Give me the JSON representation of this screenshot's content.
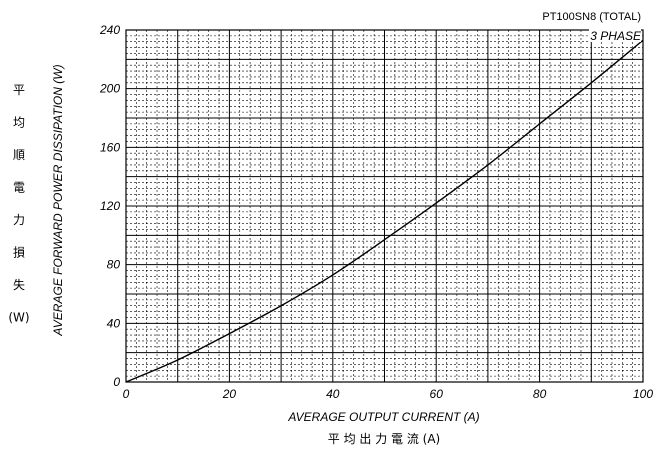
{
  "chart_data": {
    "type": "line",
    "title": "PT100SN8 (TOTAL)",
    "annotation": "3 PHASE",
    "xlabel": "AVERAGE OUTPUT CURRENT (A)",
    "xlabel_jp": "平 均 出 力 電 流  (A)",
    "ylabel": "AVERAGE FORWARD POWER DISSIPATION (W)",
    "ylabel_jp": [
      "平",
      "均",
      "順",
      "電",
      "力",
      "損",
      "失",
      "(W)"
    ],
    "xlim": [
      0,
      100
    ],
    "ylim": [
      0,
      240
    ],
    "x_ticks": [
      "0",
      "20",
      "40",
      "60",
      "80",
      "100"
    ],
    "y_ticks": [
      "0",
      "40",
      "80",
      "120",
      "160",
      "200",
      "240"
    ],
    "grid": true,
    "series": [
      {
        "x": [
          0,
          10,
          20,
          30,
          40,
          50,
          60,
          70,
          80,
          90,
          100
        ],
        "y": [
          0,
          15,
          33,
          52,
          73,
          97,
          122,
          148,
          176,
          204,
          233
        ]
      }
    ]
  }
}
